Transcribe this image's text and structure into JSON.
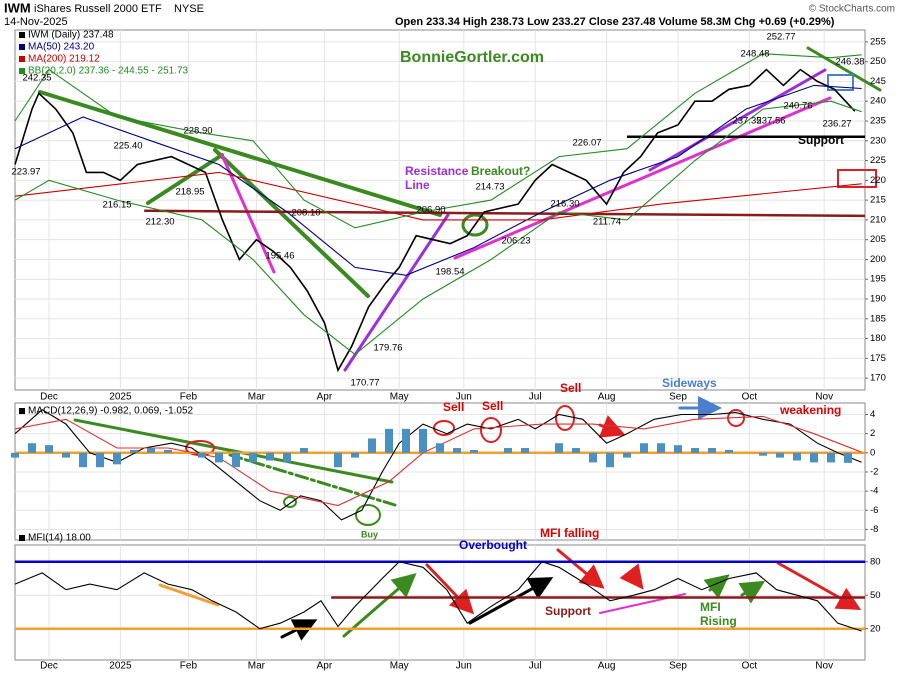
{
  "header": {
    "title": "IWM",
    "name": "iShares Russell 2000 ETF",
    "exchange": "NYSE",
    "date": "14-Nov-2025",
    "quote": "Open 233.34 High 238.73 Low 233.27 Close 237.48 Volume 58.3M Chg +0.69 (+0.29%)",
    "source": "© StockCharts.com"
  },
  "chart_data": [
    {
      "type": "line",
      "xlim": [
        0,
        250
      ],
      "ylim": [
        167,
        258
      ],
      "xticks": [
        {
          "value": 10,
          "label": "Dec"
        },
        {
          "value": 31,
          "label": "2025"
        },
        {
          "value": 51,
          "label": "Feb"
        },
        {
          "value": 71,
          "label": "Mar"
        },
        {
          "value": 91,
          "label": "Apr"
        },
        {
          "value": 113,
          "label": "May"
        },
        {
          "value": 132,
          "label": "Jun"
        },
        {
          "value": 153,
          "label": "Jul"
        },
        {
          "value": 174,
          "label": "Aug"
        },
        {
          "value": 195,
          "label": "Sep"
        },
        {
          "value": 216,
          "label": "Oct"
        },
        {
          "value": 238,
          "label": "Nov"
        }
      ],
      "yticks": [
        170,
        175,
        180,
        185,
        190,
        195,
        200,
        205,
        210,
        215,
        220,
        225,
        230,
        235,
        240,
        245,
        250,
        255
      ],
      "grid": true,
      "series": [
        {
          "name": "IWM (Daily) 237.48",
          "color": "#000000",
          "x": [
            0,
            5,
            7,
            12,
            17,
            21,
            26,
            31,
            36,
            41,
            46,
            51,
            56,
            61,
            66,
            71,
            76,
            81,
            86,
            91,
            95,
            99,
            104,
            109,
            113,
            118,
            123,
            128,
            133,
            138,
            143,
            148,
            153,
            158,
            163,
            168,
            174,
            179,
            184,
            189,
            195,
            200,
            205,
            210,
            216,
            221,
            226,
            231,
            236,
            241,
            247
          ],
          "values": [
            224,
            238,
            242,
            238,
            232,
            222,
            222,
            220,
            224,
            225,
            226,
            224,
            222,
            210,
            200,
            205,
            202,
            198,
            192,
            184,
            172,
            178,
            188,
            194,
            198,
            206,
            205,
            204,
            206,
            212,
            213,
            214,
            220,
            224,
            222,
            220,
            214,
            222,
            226,
            232,
            234,
            240,
            240,
            243,
            244,
            248,
            244,
            248,
            245,
            243,
            237.48
          ]
        },
        {
          "name": "MA(50) 243.20",
          "color": "#000080",
          "x": [
            0,
            20,
            40,
            60,
            80,
            100,
            115,
            135,
            155,
            175,
            195,
            215,
            235,
            249
          ],
          "values": [
            228,
            236,
            230,
            224,
            212,
            198,
            196,
            203,
            212,
            220,
            226,
            238,
            244,
            243.2
          ]
        },
        {
          "name": "MA(200) 219.12",
          "color": "#cc0000",
          "x": [
            0,
            60,
            120,
            155,
            190,
            249
          ],
          "values": [
            216,
            222,
            210,
            210,
            214,
            219.12
          ]
        },
        {
          "name": "BB(20,2.0) 237.36 - 244.55 - 251.73",
          "color": "#228b22",
          "x": [
            0,
            10,
            30,
            55,
            70,
            85,
            100,
            120,
            140,
            160,
            180,
            200,
            220,
            240,
            249
          ],
          "values": [
            235,
            248,
            236,
            232,
            230,
            215,
            208,
            212,
            215,
            226,
            228,
            242,
            252,
            251,
            251.73
          ],
          "lower": [
            215,
            220,
            215,
            210,
            200,
            186,
            176,
            190,
            200,
            212,
            210,
            225,
            238,
            240,
            237.36
          ]
        }
      ],
      "lines": [
        {
          "color": "#8b1a1a",
          "x": [
            38,
            250
          ],
          "values": [
            212.3,
            211
          ]
        },
        {
          "color": "#000000",
          "x": [
            180,
            250
          ],
          "values": [
            231,
            231
          ]
        }
      ],
      "price_labels": [
        {
          "value": 242.35,
          "label": "242.35"
        },
        {
          "value": 223.97,
          "label": "223.97"
        },
        {
          "value": 225.4,
          "label": "225.40"
        },
        {
          "value": 228.9,
          "label": "228.90"
        },
        {
          "value": 218.95,
          "label": "218.95"
        },
        {
          "value": 216.15,
          "label": "216.15"
        },
        {
          "value": 212.3,
          "label": "212.30"
        },
        {
          "value": 195.46,
          "label": "195.46"
        },
        {
          "value": 208.1,
          "label": "208.10"
        },
        {
          "value": 170.77,
          "label": "170.77"
        },
        {
          "value": 179.76,
          "label": "179.76"
        },
        {
          "value": 206.9,
          "label": "206.90"
        },
        {
          "value": 198.54,
          "label": "198.54"
        },
        {
          "value": 214.73,
          "label": "214.73"
        },
        {
          "value": 206.23,
          "label": "206.23"
        },
        {
          "value": 216.3,
          "label": "216.30"
        },
        {
          "value": 226.07,
          "label": "226.07"
        },
        {
          "value": 211.74,
          "label": "211.74"
        },
        {
          "value": 248.48,
          "label": "248.48"
        },
        {
          "value": 252.77,
          "label": "252.77"
        },
        {
          "value": 246.38,
          "label": "246.38"
        },
        {
          "value": 240.76,
          "label": "240.76"
        },
        {
          "value": 237.35,
          "label": "237.35"
        },
        {
          "value": 237.56,
          "label": "237.56"
        },
        {
          "value": 236.27,
          "label": "236.27"
        }
      ],
      "annotations": [
        {
          "text": "BonnieGortler.com",
          "color": "#3a8a1f"
        },
        {
          "text": "Resistance",
          "color": "#9b30d9"
        },
        {
          "text": "Line",
          "color": "#9b30d9"
        },
        {
          "text": "Breakout?",
          "color": "#3a8a1f"
        },
        {
          "text": "Support",
          "color": "#000000"
        }
      ]
    },
    {
      "type": "line",
      "xlim": [
        0,
        250
      ],
      "ylim": [
        -9.1,
        5.2
      ],
      "yticks": [
        -8,
        -6,
        -4,
        -2,
        0,
        2,
        4
      ],
      "series": [
        {
          "name": "MACD(12,26,9) -0.982, 0.069, -1.052",
          "color": "#000000",
          "x": [
            0,
            8,
            15,
            22,
            30,
            38,
            46,
            52,
            58,
            65,
            72,
            78,
            84,
            90,
            96,
            102,
            108,
            113,
            120,
            127,
            133,
            140,
            148,
            153,
            160,
            167,
            174,
            180,
            188,
            196,
            205,
            212,
            220,
            228,
            236,
            242,
            249
          ],
          "values": [
            2,
            4.5,
            3,
            0,
            -1,
            0.5,
            1,
            0.5,
            -1,
            -3,
            -5,
            -6,
            -4.5,
            -5,
            -7,
            -6,
            -2,
            1,
            3,
            2,
            3,
            2.5,
            3.5,
            2.5,
            4,
            3.5,
            1,
            2,
            3.5,
            4,
            4,
            4.2,
            3.5,
            3,
            1,
            0,
            -0.982
          ]
        },
        {
          "color": "#e03030",
          "x": [
            0,
            15,
            30,
            45,
            60,
            75,
            95,
            110,
            120,
            135,
            155,
            170,
            185,
            200,
            220,
            235,
            249
          ],
          "values": [
            2.5,
            3.5,
            0.5,
            0.5,
            -0.5,
            -4,
            -5.5,
            -3,
            0,
            2.5,
            3,
            3,
            2.5,
            3.5,
            3.8,
            2,
            0.069
          ]
        },
        {
          "type": "bar",
          "color": "#4a90c0",
          "x": [
            0,
            5,
            10,
            15,
            20,
            25,
            30,
            35,
            40,
            45,
            50,
            55,
            60,
            65,
            70,
            75,
            80,
            85,
            90,
            95,
            100,
            105,
            110,
            115,
            120,
            125,
            130,
            135,
            140,
            145,
            150,
            155,
            160,
            165,
            170,
            175,
            180,
            185,
            190,
            195,
            200,
            205,
            210,
            215,
            220,
            225,
            230,
            235,
            240,
            245
          ],
          "values": [
            -0.5,
            1,
            0.8,
            -0.5,
            -1.5,
            -1.5,
            -1.2,
            0.3,
            0.5,
            0.3,
            0,
            -0.5,
            -1,
            -1.5,
            -1,
            -0.8,
            -1,
            0.5,
            0,
            -1.5,
            -0.5,
            1.5,
            2.5,
            2.5,
            2.5,
            1,
            0.5,
            0.3,
            0,
            0.5,
            0.5,
            0,
            1,
            0.5,
            -1,
            -1.5,
            -0.5,
            1,
            1,
            0.8,
            0.5,
            0.5,
            0.3,
            0,
            -0.3,
            -0.5,
            -0.8,
            -1,
            -1,
            -1.052
          ]
        }
      ],
      "lines": [
        {
          "color": "#f0a030",
          "x": [
            0,
            250
          ],
          "values": [
            0,
            0
          ]
        }
      ],
      "annotations": [
        {
          "text": "Sell",
          "color": "#dd0000"
        },
        {
          "text": "Sell",
          "color": "#dd0000"
        },
        {
          "text": "Sell",
          "color": "#dd0000"
        },
        {
          "text": "Sideways",
          "color": "#4a7fd0"
        },
        {
          "text": "weakening",
          "color": "#dd0000"
        },
        {
          "text": "Buy",
          "color": "#3a8a1f"
        }
      ]
    },
    {
      "type": "line",
      "xlim": [
        0,
        250
      ],
      "ylim": [
        -8,
        95
      ],
      "xticks": [
        {
          "value": 10,
          "label": "Dec"
        },
        {
          "value": 31,
          "label": "2025"
        },
        {
          "value": 51,
          "label": "Feb"
        },
        {
          "value": 71,
          "label": "Mar"
        },
        {
          "value": 91,
          "label": "Apr"
        },
        {
          "value": 113,
          "label": "May"
        },
        {
          "value": 132,
          "label": "Jun"
        },
        {
          "value": 153,
          "label": "Jul"
        },
        {
          "value": 174,
          "label": "Aug"
        },
        {
          "value": 195,
          "label": "Sep"
        },
        {
          "value": 216,
          "label": "Oct"
        },
        {
          "value": 238,
          "label": "Nov"
        }
      ],
      "yticks": [
        20,
        50,
        80
      ],
      "series": [
        {
          "name": "MFI(14) 18.00",
          "color": "#000000",
          "x": [
            0,
            8,
            15,
            22,
            30,
            38,
            45,
            52,
            58,
            65,
            72,
            78,
            85,
            90,
            95,
            100,
            108,
            113,
            120,
            127,
            133,
            140,
            148,
            155,
            160,
            168,
            175,
            182,
            188,
            195,
            202,
            210,
            218,
            224,
            230,
            236,
            242,
            249
          ],
          "values": [
            60,
            70,
            55,
            60,
            55,
            70,
            60,
            55,
            45,
            35,
            20,
            25,
            35,
            45,
            22,
            40,
            65,
            80,
            75,
            55,
            25,
            40,
            55,
            80,
            75,
            60,
            45,
            50,
            55,
            65,
            55,
            65,
            70,
            55,
            50,
            45,
            25,
            18
          ]
        }
      ],
      "lines": [
        {
          "color": "#0000cc",
          "x": [
            0,
            250
          ],
          "values": [
            80,
            80
          ]
        },
        {
          "color": "#f0a030",
          "x": [
            0,
            250
          ],
          "values": [
            20,
            20
          ]
        },
        {
          "color": "#8b1a1a",
          "x": [
            93,
            250
          ],
          "values": [
            48,
            48
          ]
        }
      ],
      "annotations": [
        {
          "text": "Overbought",
          "color": "#0000cc"
        },
        {
          "text": "MFI falling",
          "color": "#dd0000"
        },
        {
          "text": "Support",
          "color": "#8b1a1a"
        },
        {
          "text": "MFI",
          "color": "#3a8a1f"
        },
        {
          "text": "Rising",
          "color": "#3a8a1f"
        }
      ]
    }
  ]
}
